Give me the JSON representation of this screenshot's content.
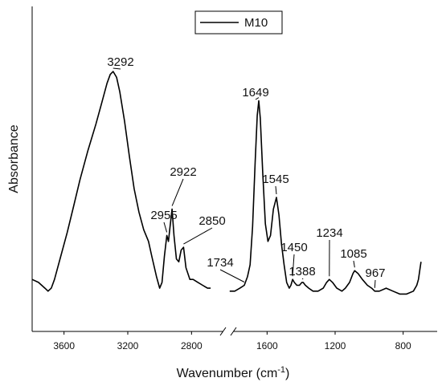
{
  "chart_data": {
    "type": "line",
    "xlabel_main": "Wavenumber (cm",
    "xlabel_sup": "-1",
    "xlabel_close": ")",
    "ylabel": "Absorbance",
    "legend_position": "top-center",
    "grid": false,
    "x_reversed": true,
    "axis_break": true,
    "segments": [
      {
        "xlim": [
          3800,
          2600
        ],
        "ticks": [
          "3600",
          "3200",
          "2800"
        ],
        "tick_values": [
          3600,
          3200,
          2800
        ]
      },
      {
        "xlim": [
          1800,
          600
        ],
        "ticks": [
          "1600",
          "1200",
          "800"
        ],
        "tick_values": [
          1600,
          1200,
          800
        ]
      }
    ],
    "ylim": [
      0,
      1
    ],
    "series": [
      {
        "name": "M10",
        "color": "#000000",
        "points": [
          [
            3800,
            0.12
          ],
          [
            3760,
            0.11
          ],
          [
            3720,
            0.09
          ],
          [
            3700,
            0.08
          ],
          [
            3680,
            0.09
          ],
          [
            3660,
            0.12
          ],
          [
            3620,
            0.2
          ],
          [
            3580,
            0.28
          ],
          [
            3540,
            0.37
          ],
          [
            3500,
            0.46
          ],
          [
            3450,
            0.56
          ],
          [
            3400,
            0.65
          ],
          [
            3360,
            0.73
          ],
          [
            3330,
            0.79
          ],
          [
            3310,
            0.82
          ],
          [
            3292,
            0.83
          ],
          [
            3270,
            0.81
          ],
          [
            3250,
            0.76
          ],
          [
            3220,
            0.66
          ],
          [
            3190,
            0.54
          ],
          [
            3160,
            0.43
          ],
          [
            3130,
            0.35
          ],
          [
            3100,
            0.29
          ],
          [
            3070,
            0.25
          ],
          [
            3050,
            0.2
          ],
          [
            3020,
            0.13
          ],
          [
            3000,
            0.09
          ],
          [
            2985,
            0.11
          ],
          [
            2970,
            0.2
          ],
          [
            2955,
            0.27
          ],
          [
            2945,
            0.25
          ],
          [
            2935,
            0.3
          ],
          [
            2922,
            0.36
          ],
          [
            2910,
            0.27
          ],
          [
            2895,
            0.19
          ],
          [
            2880,
            0.18
          ],
          [
            2865,
            0.22
          ],
          [
            2850,
            0.23
          ],
          [
            2835,
            0.16
          ],
          [
            2810,
            0.12
          ],
          [
            2790,
            0.12
          ],
          [
            2760,
            0.11
          ],
          [
            2730,
            0.1
          ],
          [
            2700,
            0.09
          ],
          [
            2680,
            0.09
          ],
          [
            1820,
            0.08
          ],
          [
            1790,
            0.08
          ],
          [
            1760,
            0.09
          ],
          [
            1734,
            0.1
          ],
          [
            1715,
            0.13
          ],
          [
            1700,
            0.17
          ],
          [
            1685,
            0.3
          ],
          [
            1670,
            0.52
          ],
          [
            1658,
            0.68
          ],
          [
            1649,
            0.73
          ],
          [
            1640,
            0.67
          ],
          [
            1625,
            0.48
          ],
          [
            1610,
            0.31
          ],
          [
            1595,
            0.25
          ],
          [
            1580,
            0.27
          ],
          [
            1563,
            0.36
          ],
          [
            1545,
            0.4
          ],
          [
            1530,
            0.34
          ],
          [
            1515,
            0.24
          ],
          [
            1500,
            0.17
          ],
          [
            1485,
            0.11
          ],
          [
            1470,
            0.09
          ],
          [
            1460,
            0.1
          ],
          [
            1450,
            0.12
          ],
          [
            1440,
            0.11
          ],
          [
            1425,
            0.1
          ],
          [
            1410,
            0.1
          ],
          [
            1395,
            0.11
          ],
          [
            1388,
            0.11
          ],
          [
            1375,
            0.1
          ],
          [
            1355,
            0.09
          ],
          [
            1330,
            0.08
          ],
          [
            1300,
            0.08
          ],
          [
            1270,
            0.09
          ],
          [
            1250,
            0.11
          ],
          [
            1234,
            0.12
          ],
          [
            1215,
            0.11
          ],
          [
            1190,
            0.09
          ],
          [
            1160,
            0.08
          ],
          [
            1140,
            0.09
          ],
          [
            1115,
            0.11
          ],
          [
            1095,
            0.14
          ],
          [
            1085,
            0.15
          ],
          [
            1065,
            0.14
          ],
          [
            1040,
            0.12
          ],
          [
            1010,
            0.1
          ],
          [
            985,
            0.09
          ],
          [
            967,
            0.08
          ],
          [
            940,
            0.08
          ],
          [
            900,
            0.09
          ],
          [
            860,
            0.08
          ],
          [
            820,
            0.07
          ],
          [
            780,
            0.07
          ],
          [
            740,
            0.08
          ],
          [
            720,
            0.1
          ],
          [
            710,
            0.12
          ],
          [
            700,
            0.16
          ],
          [
            695,
            0.18
          ]
        ]
      }
    ],
    "annotations": [
      {
        "label": "3292",
        "x": 3292,
        "y": 0.83
      },
      {
        "label": "2955",
        "x": 2955,
        "y": 0.27
      },
      {
        "label": "2922",
        "x": 2922,
        "y": 0.36
      },
      {
        "label": "2850",
        "x": 2850,
        "y": 0.23
      },
      {
        "label": "1734",
        "x": 1734,
        "y": 0.1
      },
      {
        "label": "1649",
        "x": 1649,
        "y": 0.73
      },
      {
        "label": "1545",
        "x": 1545,
        "y": 0.4
      },
      {
        "label": "1450",
        "x": 1450,
        "y": 0.12
      },
      {
        "label": "1388",
        "x": 1388,
        "y": 0.11
      },
      {
        "label": "1234",
        "x": 1234,
        "y": 0.12
      },
      {
        "label": "1085",
        "x": 1085,
        "y": 0.15
      },
      {
        "label": "967",
        "x": 967,
        "y": 0.08
      }
    ]
  }
}
